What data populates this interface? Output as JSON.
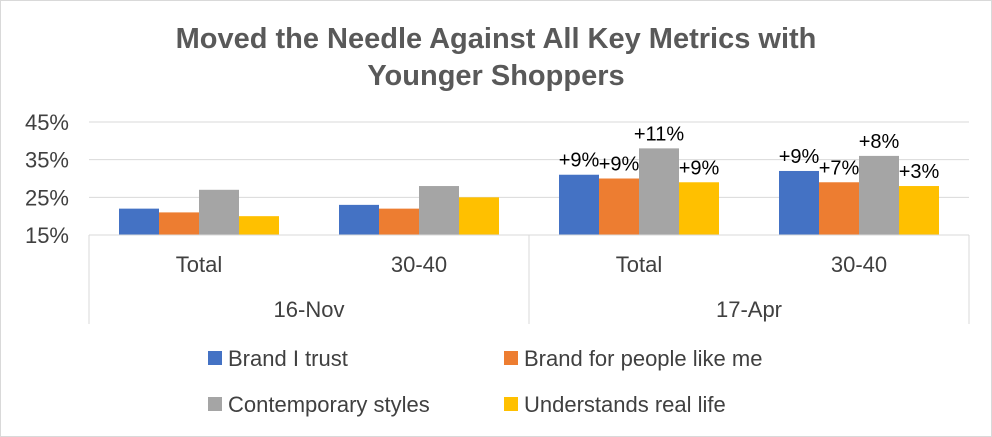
{
  "chart_data": {
    "type": "bar",
    "title_lines": [
      "Moved the Needle Against All Key Metrics with",
      "Younger Shoppers"
    ],
    "ylim": [
      15,
      45
    ],
    "yticks": [
      "15%",
      "25%",
      "35%",
      "45%"
    ],
    "ytick_values": [
      15,
      25,
      35,
      45
    ],
    "categories": [
      "Total",
      "30-40",
      "Total",
      "30-40"
    ],
    "groups": [
      "16-Nov",
      "17-Apr"
    ],
    "grid": true,
    "legend_position": "bottom",
    "series": [
      {
        "name": "Brand I trust",
        "color": "#4472c4",
        "values": [
          22,
          23,
          31,
          32
        ],
        "labels": [
          "",
          "",
          "+9%",
          "+9%"
        ]
      },
      {
        "name": "Brand for people like me",
        "color": "#ed7d31",
        "values": [
          21,
          22,
          30,
          29
        ],
        "labels": [
          "",
          "",
          "+9%",
          "+7%"
        ]
      },
      {
        "name": "Contemporary styles",
        "color": "#a5a5a5",
        "values": [
          27,
          28,
          38,
          36
        ],
        "labels": [
          "",
          "",
          "+11%",
          "+8%"
        ]
      },
      {
        "name": "Understands real life",
        "color": "#ffc000",
        "values": [
          20,
          25,
          29,
          28
        ],
        "labels": [
          "",
          "",
          "+9%",
          "+3%"
        ]
      }
    ]
  }
}
